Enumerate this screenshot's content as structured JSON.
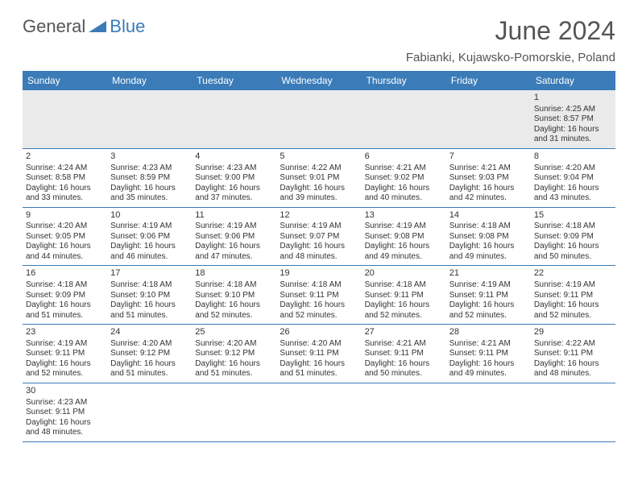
{
  "brand": {
    "part1": "General",
    "part2": "Blue"
  },
  "title": "June 2024",
  "location": "Fabianki, Kujawsko-Pomorskie, Poland",
  "day_headers": [
    "Sunday",
    "Monday",
    "Tuesday",
    "Wednesday",
    "Thursday",
    "Friday",
    "Saturday"
  ],
  "colors": {
    "accent": "#3a7bb8",
    "header_bg": "#eaeaea"
  },
  "weeks": [
    [
      null,
      null,
      null,
      null,
      null,
      null,
      {
        "n": "1",
        "sr": "4:25 AM",
        "ss": "8:57 PM",
        "dl": "16 hours and 31 minutes."
      }
    ],
    [
      {
        "n": "2",
        "sr": "4:24 AM",
        "ss": "8:58 PM",
        "dl": "16 hours and 33 minutes."
      },
      {
        "n": "3",
        "sr": "4:23 AM",
        "ss": "8:59 PM",
        "dl": "16 hours and 35 minutes."
      },
      {
        "n": "4",
        "sr": "4:23 AM",
        "ss": "9:00 PM",
        "dl": "16 hours and 37 minutes."
      },
      {
        "n": "5",
        "sr": "4:22 AM",
        "ss": "9:01 PM",
        "dl": "16 hours and 39 minutes."
      },
      {
        "n": "6",
        "sr": "4:21 AM",
        "ss": "9:02 PM",
        "dl": "16 hours and 40 minutes."
      },
      {
        "n": "7",
        "sr": "4:21 AM",
        "ss": "9:03 PM",
        "dl": "16 hours and 42 minutes."
      },
      {
        "n": "8",
        "sr": "4:20 AM",
        "ss": "9:04 PM",
        "dl": "16 hours and 43 minutes."
      }
    ],
    [
      {
        "n": "9",
        "sr": "4:20 AM",
        "ss": "9:05 PM",
        "dl": "16 hours and 44 minutes."
      },
      {
        "n": "10",
        "sr": "4:19 AM",
        "ss": "9:06 PM",
        "dl": "16 hours and 46 minutes."
      },
      {
        "n": "11",
        "sr": "4:19 AM",
        "ss": "9:06 PM",
        "dl": "16 hours and 47 minutes."
      },
      {
        "n": "12",
        "sr": "4:19 AM",
        "ss": "9:07 PM",
        "dl": "16 hours and 48 minutes."
      },
      {
        "n": "13",
        "sr": "4:19 AM",
        "ss": "9:08 PM",
        "dl": "16 hours and 49 minutes."
      },
      {
        "n": "14",
        "sr": "4:18 AM",
        "ss": "9:08 PM",
        "dl": "16 hours and 49 minutes."
      },
      {
        "n": "15",
        "sr": "4:18 AM",
        "ss": "9:09 PM",
        "dl": "16 hours and 50 minutes."
      }
    ],
    [
      {
        "n": "16",
        "sr": "4:18 AM",
        "ss": "9:09 PM",
        "dl": "16 hours and 51 minutes."
      },
      {
        "n": "17",
        "sr": "4:18 AM",
        "ss": "9:10 PM",
        "dl": "16 hours and 51 minutes."
      },
      {
        "n": "18",
        "sr": "4:18 AM",
        "ss": "9:10 PM",
        "dl": "16 hours and 52 minutes."
      },
      {
        "n": "19",
        "sr": "4:18 AM",
        "ss": "9:11 PM",
        "dl": "16 hours and 52 minutes."
      },
      {
        "n": "20",
        "sr": "4:18 AM",
        "ss": "9:11 PM",
        "dl": "16 hours and 52 minutes."
      },
      {
        "n": "21",
        "sr": "4:19 AM",
        "ss": "9:11 PM",
        "dl": "16 hours and 52 minutes."
      },
      {
        "n": "22",
        "sr": "4:19 AM",
        "ss": "9:11 PM",
        "dl": "16 hours and 52 minutes."
      }
    ],
    [
      {
        "n": "23",
        "sr": "4:19 AM",
        "ss": "9:11 PM",
        "dl": "16 hours and 52 minutes."
      },
      {
        "n": "24",
        "sr": "4:20 AM",
        "ss": "9:12 PM",
        "dl": "16 hours and 51 minutes."
      },
      {
        "n": "25",
        "sr": "4:20 AM",
        "ss": "9:12 PM",
        "dl": "16 hours and 51 minutes."
      },
      {
        "n": "26",
        "sr": "4:20 AM",
        "ss": "9:11 PM",
        "dl": "16 hours and 51 minutes."
      },
      {
        "n": "27",
        "sr": "4:21 AM",
        "ss": "9:11 PM",
        "dl": "16 hours and 50 minutes."
      },
      {
        "n": "28",
        "sr": "4:21 AM",
        "ss": "9:11 PM",
        "dl": "16 hours and 49 minutes."
      },
      {
        "n": "29",
        "sr": "4:22 AM",
        "ss": "9:11 PM",
        "dl": "16 hours and 48 minutes."
      }
    ],
    [
      {
        "n": "30",
        "sr": "4:23 AM",
        "ss": "9:11 PM",
        "dl": "16 hours and 48 minutes."
      },
      null,
      null,
      null,
      null,
      null,
      null
    ]
  ],
  "labels": {
    "sunrise": "Sunrise:",
    "sunset": "Sunset:",
    "daylight": "Daylight:"
  }
}
